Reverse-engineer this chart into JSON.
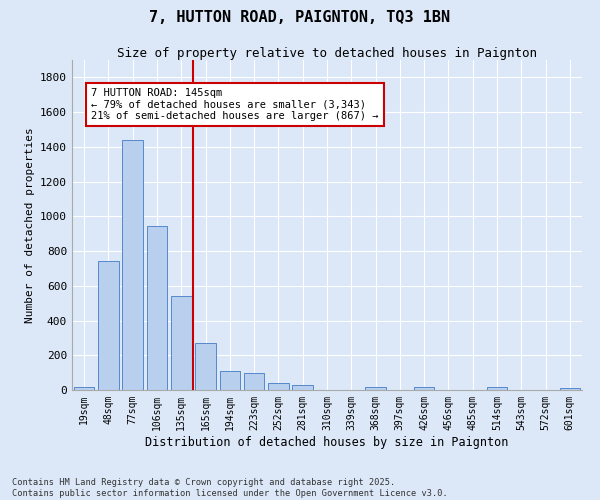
{
  "title": "7, HUTTON ROAD, PAIGNTON, TQ3 1BN",
  "subtitle": "Size of property relative to detached houses in Paignton",
  "xlabel": "Distribution of detached houses by size in Paignton",
  "ylabel": "Number of detached properties",
  "categories": [
    "19sqm",
    "48sqm",
    "77sqm",
    "106sqm",
    "135sqm",
    "165sqm",
    "194sqm",
    "223sqm",
    "252sqm",
    "281sqm",
    "310sqm",
    "339sqm",
    "368sqm",
    "397sqm",
    "426sqm",
    "456sqm",
    "485sqm",
    "514sqm",
    "543sqm",
    "572sqm",
    "601sqm"
  ],
  "values": [
    20,
    745,
    1440,
    945,
    540,
    270,
    110,
    100,
    40,
    28,
    0,
    0,
    15,
    0,
    20,
    0,
    0,
    15,
    0,
    0,
    10
  ],
  "bar_color": "#b8d0ee",
  "bar_edge_color": "#5588cc",
  "background_color": "#dce8f8",
  "fig_background_color": "#dce8f8",
  "grid_color": "#ffffff",
  "vline_color": "#cc0000",
  "vline_pos": 4.5,
  "annotation_text": "7 HUTTON ROAD: 145sqm\n← 79% of detached houses are smaller (3,343)\n21% of semi-detached houses are larger (867) →",
  "annotation_box_edge_color": "#cc0000",
  "footer": "Contains HM Land Registry data © Crown copyright and database right 2025.\nContains public sector information licensed under the Open Government Licence v3.0.",
  "ylim": [
    0,
    1900
  ],
  "yticks": [
    0,
    200,
    400,
    600,
    800,
    1000,
    1200,
    1400,
    1600,
    1800
  ]
}
